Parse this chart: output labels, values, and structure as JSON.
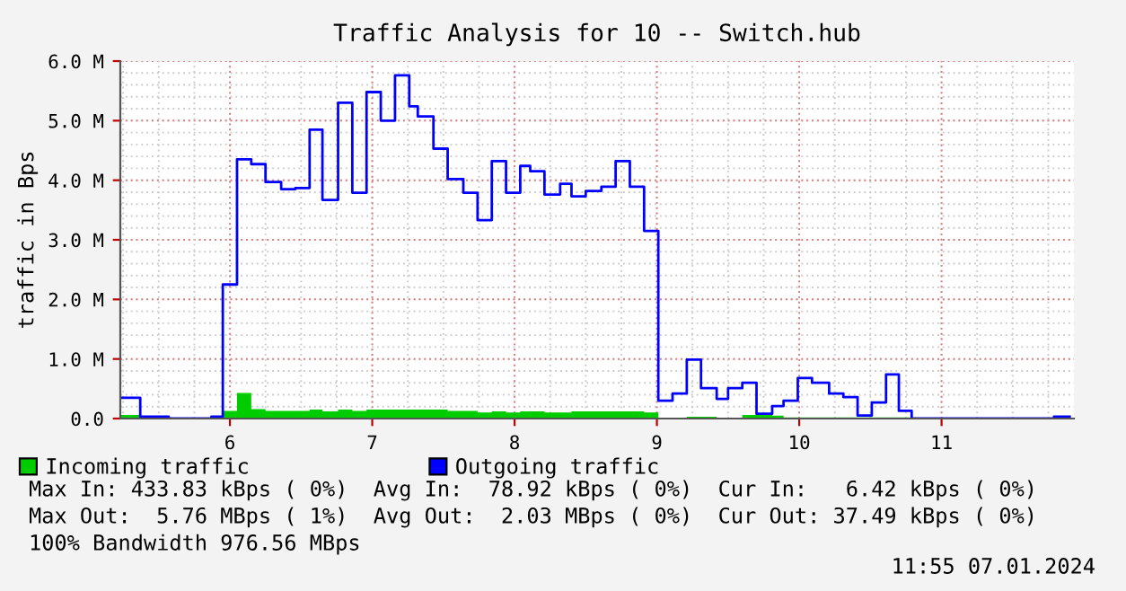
{
  "chart_data": {
    "type": "step",
    "title": "Traffic Analysis for 10 -- Switch.hub",
    "ylabel": "traffic in Bps",
    "xlim": [
      5.23,
      11.93
    ],
    "xticks": [
      6,
      7,
      8,
      9,
      10,
      11
    ],
    "ylim": [
      0,
      6.0
    ],
    "yticks": [
      {
        "value": 0,
        "label": "0.0"
      },
      {
        "value": 1,
        "label": "1.0 M"
      },
      {
        "value": 2,
        "label": "2.0 M"
      },
      {
        "value": 3,
        "label": "3.0 M"
      },
      {
        "value": 4,
        "label": "4.0 M"
      },
      {
        "value": 5,
        "label": "5.0 M"
      },
      {
        "value": 6,
        "label": "6.0 M"
      }
    ],
    "grid": true,
    "legend": "bottom",
    "series": [
      {
        "name": "Incoming traffic",
        "type": "area",
        "color": "#00cc00",
        "x": [
          5.23,
          5.37,
          5.95,
          6.05,
          6.15,
          6.25,
          6.56,
          6.65,
          6.76,
          6.86,
          6.96,
          7.53,
          7.74,
          7.84,
          7.94,
          8.04,
          8.21,
          8.4,
          8.91,
          9.01,
          9.21,
          9.42,
          9.6,
          9.81,
          9.89,
          10.79,
          11.9
        ],
        "values": [
          0.06,
          0,
          0.13,
          0.43,
          0.16,
          0.13,
          0.15,
          0.12,
          0.15,
          0.13,
          0.15,
          0.13,
          0.1,
          0.12,
          0.1,
          0.12,
          0.1,
          0.12,
          0.1,
          0,
          0.03,
          0,
          0.06,
          0.05,
          0.02,
          0,
          0
        ]
      },
      {
        "name": "Outgoing traffic",
        "color": "#0000ff",
        "x": [
          5.23,
          5.37,
          5.57,
          5.87,
          5.95,
          6.05,
          6.15,
          6.25,
          6.36,
          6.46,
          6.56,
          6.65,
          6.76,
          6.86,
          6.96,
          7.06,
          7.16,
          7.26,
          7.32,
          7.43,
          7.53,
          7.64,
          7.74,
          7.84,
          7.94,
          8.04,
          8.11,
          8.21,
          8.32,
          8.4,
          8.5,
          8.61,
          8.71,
          8.81,
          8.91,
          9.01,
          9.11,
          9.21,
          9.31,
          9.42,
          9.5,
          9.6,
          9.7,
          9.81,
          9.89,
          9.99,
          10.09,
          10.21,
          10.31,
          10.41,
          10.51,
          10.61,
          10.7,
          10.79,
          11.79,
          11.9
        ],
        "values": [
          0.35,
          0.03,
          0,
          0.03,
          2.25,
          4.35,
          4.27,
          3.97,
          3.85,
          3.87,
          4.85,
          3.67,
          5.3,
          3.79,
          5.48,
          5.0,
          5.76,
          5.24,
          5.07,
          4.53,
          4.02,
          3.79,
          3.33,
          4.32,
          3.79,
          4.24,
          4.15,
          3.76,
          3.94,
          3.73,
          3.82,
          3.89,
          4.32,
          3.89,
          3.15,
          0.3,
          0.42,
          0.99,
          0.51,
          0.33,
          0.51,
          0.6,
          0.08,
          0.21,
          0.3,
          0.68,
          0.6,
          0.42,
          0.36,
          0.05,
          0.27,
          0.74,
          0.13,
          0,
          0.03,
          0.03
        ]
      }
    ],
    "annotations": [
      "Max In: 433.83 kBps ( 0%)  Avg In:  78.92 kBps ( 0%)  Cur In:   6.42 kBps ( 0%)",
      "Max Out:  5.76 MBps ( 1%)  Avg Out:  2.03 MBps ( 0%)  Cur Out: 37.49 kBps ( 0%)",
      "100% Bandwidth 976.56 MBps",
      "11:55 07.01.2024"
    ]
  }
}
